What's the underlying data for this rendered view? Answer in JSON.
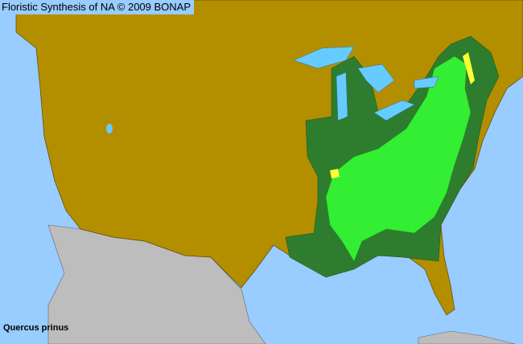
{
  "header": {
    "title": "Floristic Synthesis of NA © 2009 BONAP"
  },
  "species": {
    "name": "Quercus prinus"
  },
  "colors": {
    "water": "#99ccff",
    "absent": "#b38f00",
    "present_native": "#2e7d2e",
    "native_not_rare": "#33ee33",
    "rare": "#ffff33",
    "outside_region": "#bdbdbd"
  }
}
